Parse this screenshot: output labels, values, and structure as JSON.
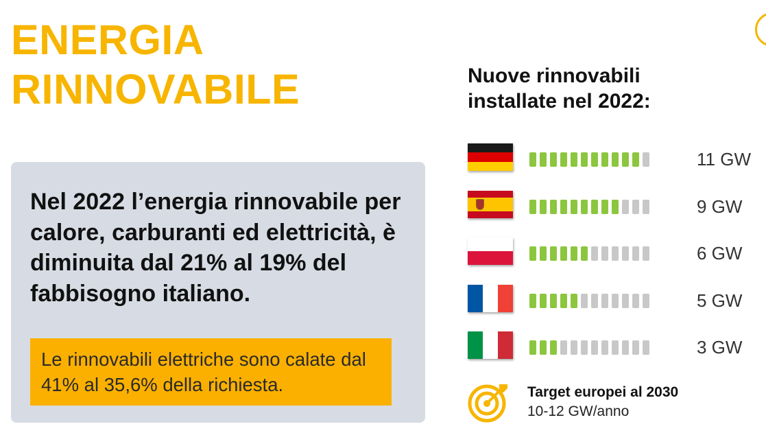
{
  "header": {
    "title_line1": "ENERGIA",
    "title_line2": "RINNOVABILE"
  },
  "info": {
    "main_text": "Nel 2022 l’energia rinnovabile per calore, carburanti ed elettricità, è diminuita dal 21% al 19% del fabbisogno italiano.",
    "callout_text": "Le rinnovabili elettriche sono calate dal 41% al 35,6% della richiesta."
  },
  "colors": {
    "brand_yellow": "#f7b500",
    "bar_green": "#8cc63f",
    "bar_gray": "#c8c8c8",
    "box_bg": "#d7dce4"
  },
  "chart_data": {
    "type": "bar",
    "title": "Nuove rinnovabili installate nel 2022:",
    "total_segments": 12,
    "unit": "GW",
    "categories": [
      "Germania",
      "Spagna",
      "Polonia",
      "Francia",
      "Italia"
    ],
    "flags": [
      "flag-germany",
      "flag-spain",
      "flag-poland",
      "flag-france",
      "flag-italy"
    ],
    "values": [
      11,
      9,
      6,
      5,
      3
    ],
    "labels": [
      "11 GW",
      "9 GW",
      "6 GW",
      "5 GW",
      "3 GW"
    ]
  },
  "target": {
    "title": "Target europei al 2030",
    "subtitle": "10-12 GW/anno",
    "icon": "target-icon"
  }
}
